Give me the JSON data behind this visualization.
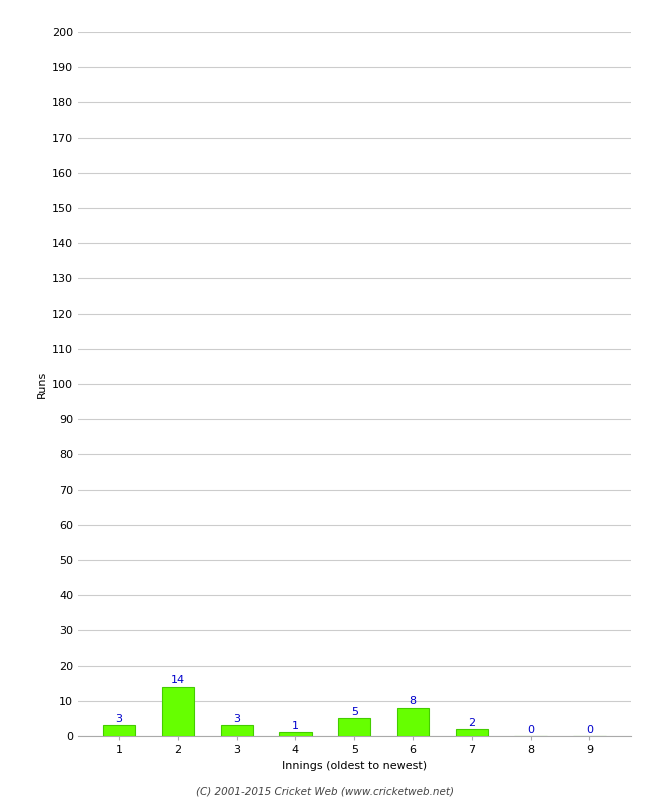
{
  "innings": [
    1,
    2,
    3,
    4,
    5,
    6,
    7,
    8,
    9
  ],
  "runs": [
    3,
    14,
    3,
    1,
    5,
    8,
    2,
    0,
    0
  ],
  "bar_color": "#66ff00",
  "bar_edge_color": "#44cc00",
  "label_color": "#0000cc",
  "xlabel": "Innings (oldest to newest)",
  "ylabel": "Runs",
  "ylim": [
    0,
    200
  ],
  "yticks": [
    0,
    10,
    20,
    30,
    40,
    50,
    60,
    70,
    80,
    90,
    100,
    110,
    120,
    130,
    140,
    150,
    160,
    170,
    180,
    190,
    200
  ],
  "footer": "(C) 2001-2015 Cricket Web (www.cricketweb.net)",
  "background_color": "#ffffff",
  "grid_color": "#cccccc",
  "tick_label_fontsize": 8,
  "axis_label_fontsize": 8,
  "footer_fontsize": 7.5
}
